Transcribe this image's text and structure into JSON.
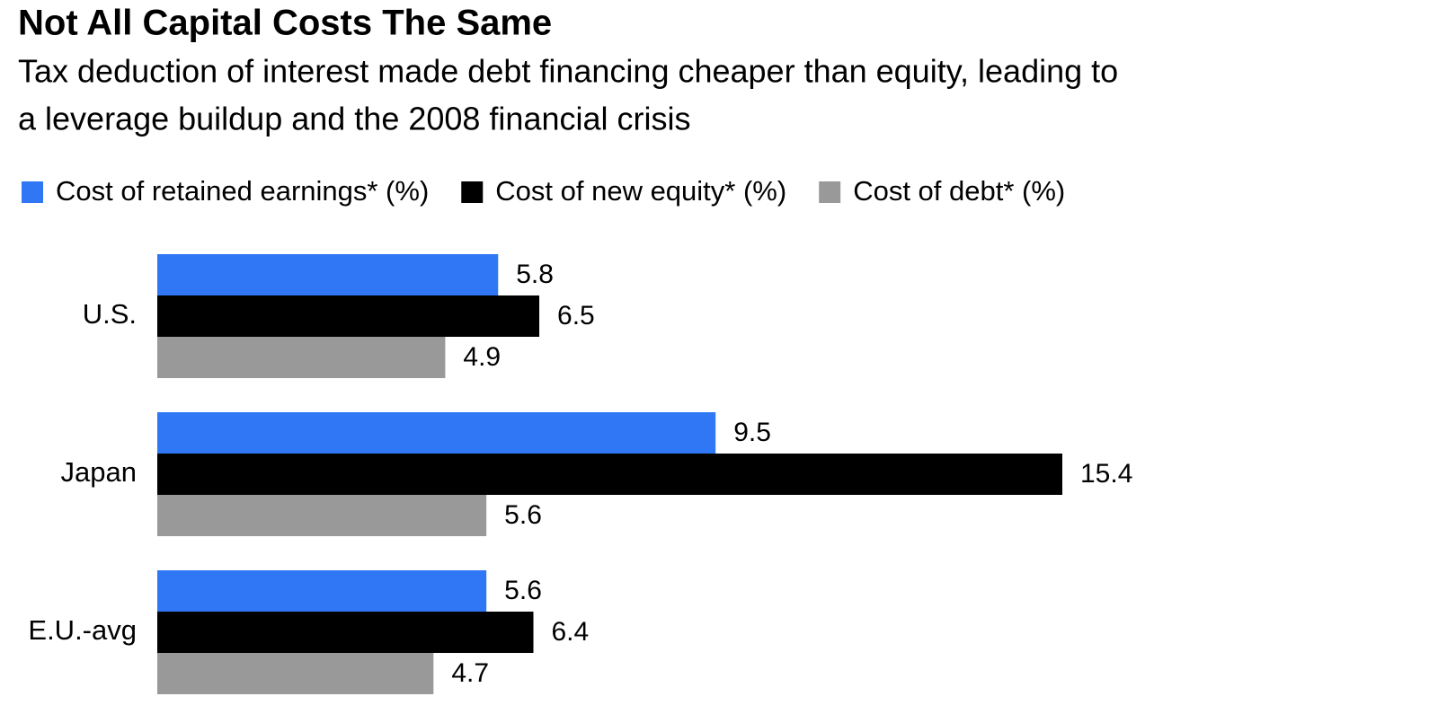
{
  "chart_data": {
    "type": "bar",
    "orientation": "horizontal",
    "title": "Not All Capital Costs The Same",
    "subtitle": [
      "Tax deduction of interest made debt financing cheaper than equity, leading to",
      "a leverage buildup and the 2008 financial crisis"
    ],
    "categories": [
      "U.S.",
      "Japan",
      "E.U.-avg"
    ],
    "series": [
      {
        "name": "Cost of retained earnings* (%)",
        "color": "#2f77f5",
        "values": [
          5.8,
          9.5,
          5.6
        ]
      },
      {
        "name": "Cost of new equity* (%)",
        "color": "#000000",
        "values": [
          6.5,
          15.4,
          6.4
        ]
      },
      {
        "name": "Cost of debt* (%)",
        "color": "#999999",
        "values": [
          4.9,
          5.6,
          4.7
        ]
      }
    ]
  }
}
